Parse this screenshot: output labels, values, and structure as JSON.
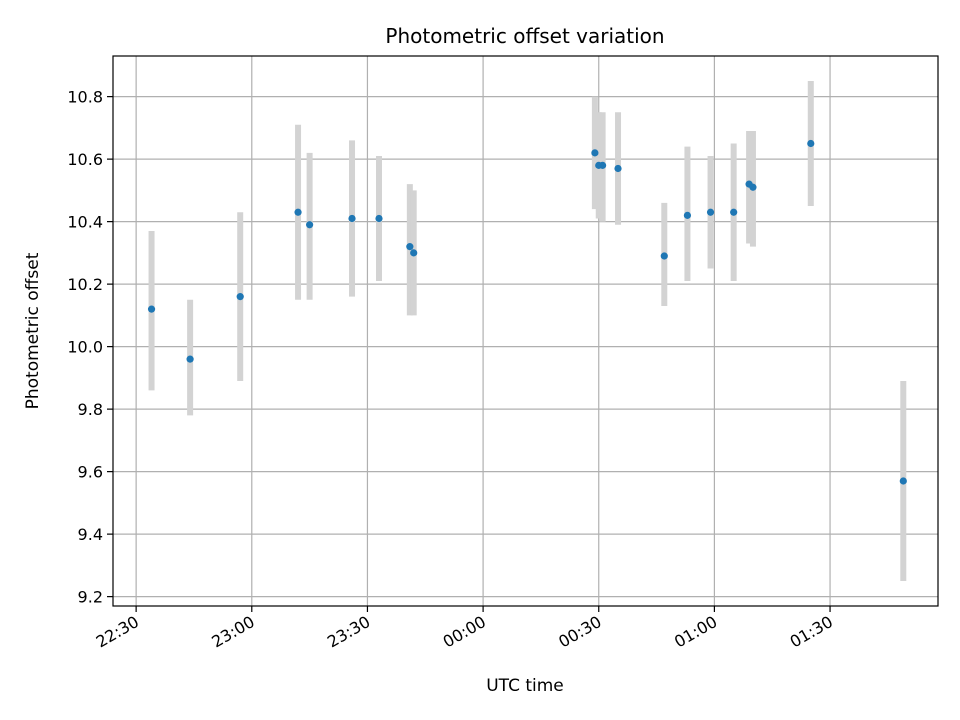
{
  "chart_data": {
    "type": "scatter",
    "title": "Photometric offset variation",
    "xlabel": "UTC time",
    "ylabel": "Photometric offset",
    "grid": true,
    "x_axis_type": "time",
    "x_ticks": [
      "22:30",
      "23:00",
      "23:30",
      "00:00",
      "00:30",
      "01:00",
      "01:30"
    ],
    "y_ticks": [
      "9.2",
      "9.4",
      "9.6",
      "9.8",
      "10.0",
      "10.2",
      "10.4",
      "10.6",
      "10.8"
    ],
    "xlim": [
      "22:24",
      "01:58"
    ],
    "ylim": [
      9.17,
      10.93
    ],
    "marker_color": "#1f77b4",
    "errorbar_color": "#d3d3d3",
    "points": [
      {
        "x": "22:34",
        "y": 10.12,
        "ylow": 9.86,
        "yhigh": 10.37
      },
      {
        "x": "22:44",
        "y": 9.96,
        "ylow": 9.78,
        "yhigh": 10.15
      },
      {
        "x": "22:57",
        "y": 10.16,
        "ylow": 9.89,
        "yhigh": 10.43
      },
      {
        "x": "23:12",
        "y": 10.43,
        "ylow": 10.15,
        "yhigh": 10.71
      },
      {
        "x": "23:15",
        "y": 10.39,
        "ylow": 10.15,
        "yhigh": 10.62
      },
      {
        "x": "23:26",
        "y": 10.41,
        "ylow": 10.16,
        "yhigh": 10.66
      },
      {
        "x": "23:33",
        "y": 10.41,
        "ylow": 10.21,
        "yhigh": 10.61
      },
      {
        "x": "23:41",
        "y": 10.32,
        "ylow": 10.1,
        "yhigh": 10.52
      },
      {
        "x": "23:42",
        "y": 10.3,
        "ylow": 10.1,
        "yhigh": 10.5
      },
      {
        "x": "00:29",
        "y": 10.62,
        "ylow": 10.44,
        "yhigh": 10.8
      },
      {
        "x": "00:30",
        "y": 10.58,
        "ylow": 10.41,
        "yhigh": 10.75
      },
      {
        "x": "00:31",
        "y": 10.58,
        "ylow": 10.4,
        "yhigh": 10.75
      },
      {
        "x": "00:35",
        "y": 10.57,
        "ylow": 10.39,
        "yhigh": 10.75
      },
      {
        "x": "00:47",
        "y": 10.29,
        "ylow": 10.13,
        "yhigh": 10.46
      },
      {
        "x": "00:53",
        "y": 10.42,
        "ylow": 10.21,
        "yhigh": 10.64
      },
      {
        "x": "00:59",
        "y": 10.43,
        "ylow": 10.25,
        "yhigh": 10.61
      },
      {
        "x": "01:05",
        "y": 10.43,
        "ylow": 10.21,
        "yhigh": 10.65
      },
      {
        "x": "01:09",
        "y": 10.52,
        "ylow": 10.33,
        "yhigh": 10.69
      },
      {
        "x": "01:10",
        "y": 10.51,
        "ylow": 10.32,
        "yhigh": 10.69
      },
      {
        "x": "01:25",
        "y": 10.65,
        "ylow": 10.45,
        "yhigh": 10.85
      },
      {
        "x": "01:49",
        "y": 9.57,
        "ylow": 9.25,
        "yhigh": 9.89
      }
    ]
  }
}
